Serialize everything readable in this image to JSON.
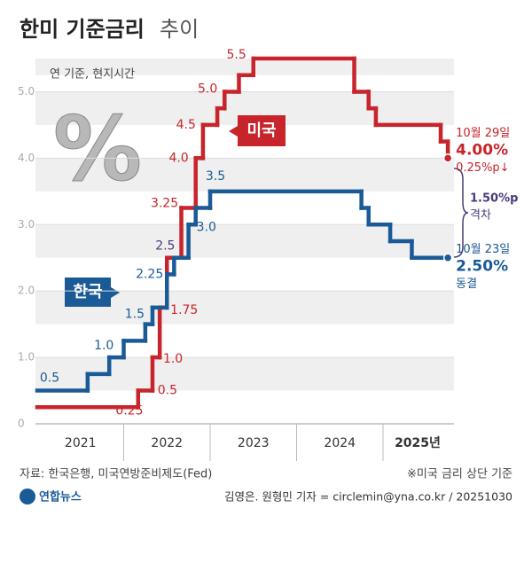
{
  "chart_data": {
    "type": "step",
    "title": "한미 기준금리",
    "title_suffix": "추이",
    "subtitle": "연 기준, 현지시간",
    "icon_text": "%",
    "xlim": [
      2021,
      2025.8
    ],
    "xticks": [
      {
        "value": 2021.5,
        "label": "2021"
      },
      {
        "value": 2022.5,
        "label": "2022"
      },
      {
        "value": 2023.5,
        "label": "2023"
      },
      {
        "value": 2024.5,
        "label": "2024"
      },
      {
        "value": 2025.4,
        "label": "2025년"
      }
    ],
    "ylim": [
      0,
      5.5
    ],
    "yticks": [
      0,
      {
        "value": 1,
        "label": "1.0"
      },
      {
        "value": 2,
        "label": "2.0"
      },
      {
        "value": 3,
        "label": "3.0"
      },
      {
        "value": 4,
        "label": "4.0"
      },
      {
        "value": 5,
        "label": "5.0"
      }
    ],
    "series": [
      {
        "name": "미국",
        "color": "#c8242b",
        "x": [
          2021,
          2022.167,
          2022.333,
          2022.417,
          2022.5,
          2022.667,
          2022.833,
          2022.917,
          2023.083,
          2023.167,
          2023.333,
          2023.5,
          2024.667,
          2024.833,
          2024.917,
          2025.667,
          2025.75
        ],
        "values": [
          0.25,
          0.5,
          1,
          1.75,
          2.5,
          3.25,
          4,
          4.5,
          4.75,
          5,
          5.25,
          5.5,
          5,
          4.75,
          4.5,
          4.25,
          4
        ],
        "value_labels": [
          "0.25",
          "0.5",
          "1.0",
          "1.75",
          null,
          "3.25",
          "4.0",
          "4.5",
          null,
          "5.0",
          null,
          "5.5",
          null,
          null,
          null,
          null,
          "4.00%"
        ],
        "end_date": "10월 29일",
        "end_note": "0.25%p↓"
      },
      {
        "name": "한국",
        "color": "#1a5a96",
        "x": [
          2021,
          2021.583,
          2021.833,
          2022,
          2022.25,
          2022.333,
          2022.5,
          2022.583,
          2022.75,
          2022.833,
          2023,
          2024.75,
          2024.833,
          2025.083,
          2025.333,
          2025.75
        ],
        "values": [
          0.5,
          0.75,
          1,
          1.25,
          1.5,
          1.75,
          2.25,
          2.5,
          3,
          3.25,
          3.5,
          3.25,
          3,
          2.75,
          2.5,
          2.5
        ],
        "value_labels": [
          "0.5",
          null,
          "1.0",
          null,
          "1.5",
          null,
          "2.25",
          "2.5",
          "3.0",
          null,
          "3.5",
          null,
          null,
          null,
          null,
          "2.50%"
        ],
        "end_date": "10월 23일",
        "end_note": "동결"
      }
    ],
    "gap_label": "1.50%p",
    "gap_note": "격차",
    "source": "자료: 한국은행, 미국연방준비제도(Fed)",
    "note": "※미국 금리 상단 기준",
    "logo": "연합뉴스",
    "credit": "김영은. 원형민 기자 = circlemin@yna.co.kr / 20251030"
  }
}
